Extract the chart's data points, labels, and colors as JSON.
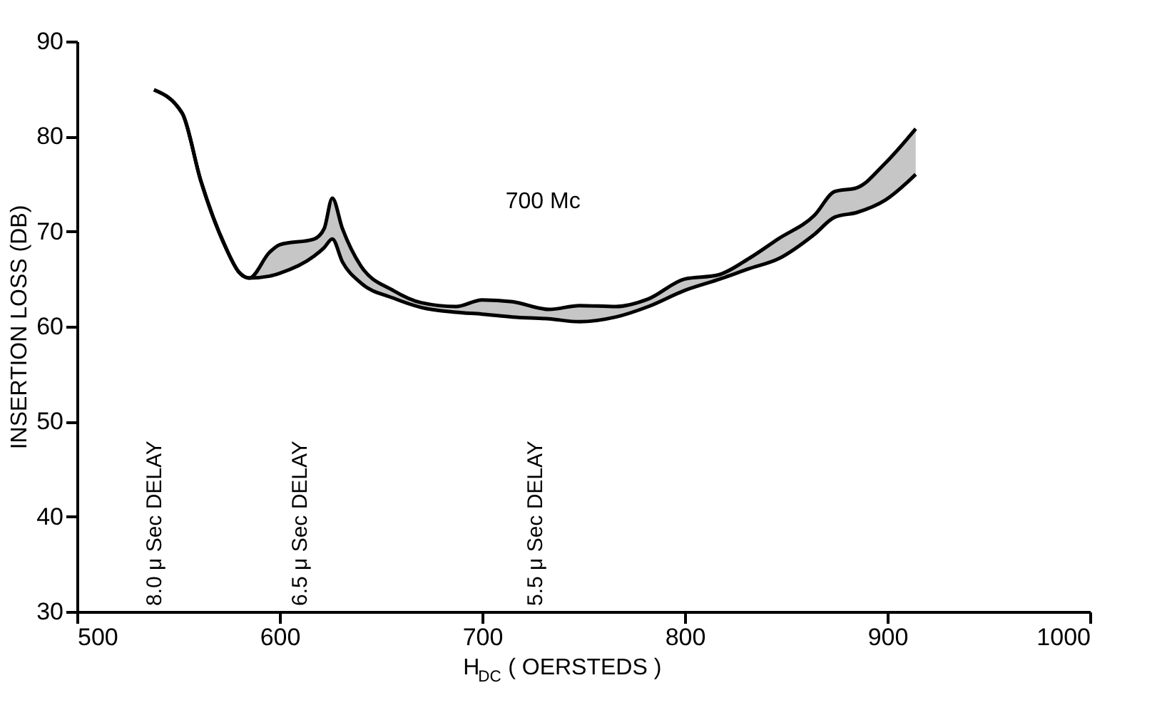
{
  "chart_data": {
    "type": "line",
    "xlabel": "H$_{DC}$ ( OERSTEDS )",
    "ylabel": "INSERTION  LOSS (DB)",
    "x": [
      538,
      552,
      561,
      573,
      580,
      585,
      595,
      600,
      617,
      622,
      626,
      631,
      640,
      656,
      670,
      687,
      700,
      715,
      733,
      748,
      766,
      782,
      800,
      816,
      832,
      846,
      864,
      874,
      885,
      899,
      914
    ],
    "series": [
      {
        "color": "#000000",
        "values": [
          84.9,
          82.4,
          75.4,
          68.5,
          65.7,
          65.1,
          67.8,
          68.6,
          69.2,
          70.3,
          73.5,
          70.3,
          66.4,
          63.8,
          62.5,
          62.1,
          62.8,
          62.6,
          61.8,
          62.2,
          62.1,
          62.9,
          65.0,
          65.4,
          67.2,
          69.2,
          71.7,
          74.2,
          74.6,
          77.2,
          80.8
        ],
        "lower": [
          84.9,
          82.4,
          75.4,
          68.5,
          65.7,
          65.1,
          65.3,
          65.6,
          67.4,
          68.3,
          69.2,
          66.8,
          64.6,
          63.0,
          62.0,
          61.5,
          61.3,
          61.0,
          60.8,
          60.5,
          61.0,
          62.1,
          63.8,
          64.9,
          66.1,
          67.1,
          69.7,
          71.5,
          72.0,
          73.3,
          76.0
        ],
        "upper": [
          84.9,
          82.4,
          75.4,
          68.5,
          65.7,
          65.1,
          67.8,
          68.6,
          69.2,
          70.3,
          73.5,
          70.3,
          66.4,
          63.8,
          62.5,
          62.1,
          62.8,
          62.6,
          61.8,
          62.2,
          62.1,
          62.9,
          65.0,
          65.4,
          67.2,
          69.2,
          71.7,
          74.2,
          74.6,
          77.2,
          80.8
        ]
      },
      {
        "color": "#000000",
        "values": [
          84.9,
          82.4,
          75.4,
          68.5,
          65.7,
          65.1,
          65.3,
          65.6,
          67.4,
          68.3,
          69.2,
          66.8,
          64.6,
          63.0,
          62.0,
          61.5,
          61.3,
          61.0,
          60.8,
          60.5,
          61.0,
          62.1,
          63.8,
          64.9,
          66.1,
          67.1,
          69.7,
          71.5,
          72.0,
          73.3,
          76.0
        ]
      }
    ],
    "annotations": [
      "700 Mc",
      "8.0 μ Sec DELAY",
      "6.5 μ Sec DELAY",
      "5.5 μ Sec DELAY"
    ],
    "xlim": [
      500,
      1000
    ],
    "xticks": [
      500,
      600,
      700,
      800,
      900,
      1000
    ],
    "ylim": [
      30,
      90
    ],
    "yticks": [
      30,
      40,
      50,
      60,
      70,
      80,
      90
    ],
    "grid": false,
    "marker": "none",
    "line_style": "solid"
  }
}
